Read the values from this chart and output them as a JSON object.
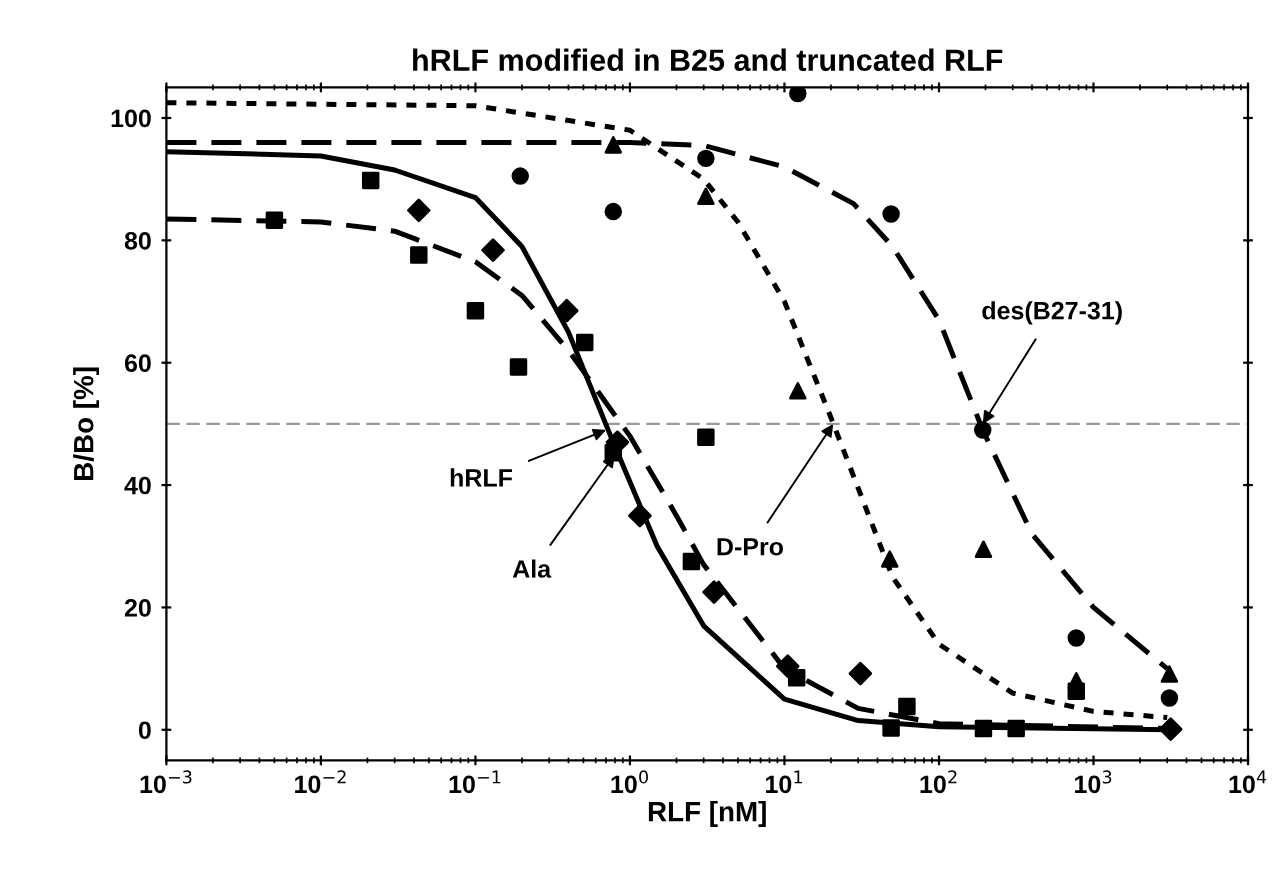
{
  "chart_data": {
    "type": "scatter",
    "title": "hRLF modified in B25 and truncated RLF",
    "xlabel": "RLF [nM]",
    "ylabel": "B/Bo [%]",
    "log": "x",
    "xlim": [
      0.001,
      10000
    ],
    "ylim": [
      -5,
      105
    ],
    "xticks": [
      {
        "value": 0.001,
        "label": "10$^{−3}$"
      },
      {
        "value": 0.01,
        "label": "10$^{−2}$"
      },
      {
        "value": 0.1,
        "label": "10$^{−1}$"
      },
      {
        "value": 1,
        "label": "10$^{0}$"
      },
      {
        "value": 10,
        "label": "10$^{1}$"
      },
      {
        "value": 100,
        "label": "10$^{2}$"
      },
      {
        "value": 1000,
        "label": "10$^{3}$"
      },
      {
        "value": 10000,
        "label": "10$^{4}$"
      }
    ],
    "yticks": [
      0,
      20,
      40,
      60,
      80,
      100
    ],
    "grid": false,
    "legend": false,
    "series": [
      {
        "marker": "square",
        "color": "#000000",
        "x": [
          0.005,
          0.021,
          0.043,
          0.1,
          0.19,
          0.51,
          0.78,
          2.5,
          3.1,
          12,
          49,
          62,
          194,
          316,
          774
        ],
        "values": [
          83.3,
          89.8,
          77.6,
          68.5,
          59.3,
          63.3,
          45.3,
          27.5,
          47.8,
          8.5,
          0.3,
          3.8,
          0.2,
          0.2,
          6.3
        ]
      },
      {
        "marker": "diamond",
        "color": "#000000",
        "x": [
          0.043,
          0.13,
          0.39,
          0.83,
          1.16,
          3.5,
          10.5,
          31,
          3160
        ],
        "values": [
          84.9,
          78.4,
          68.5,
          47,
          35,
          22.5,
          10.4,
          9.2,
          0.1
        ]
      },
      {
        "marker": "triangle",
        "color": "#000000",
        "x": [
          0.78,
          3.1,
          12.2,
          48,
          194,
          774,
          3100
        ],
        "values": [
          95.6,
          87.2,
          55.4,
          27.9,
          29.5,
          8,
          9.1
        ]
      },
      {
        "marker": "circle",
        "color": "#000000",
        "x": [
          0.195,
          0.78,
          3.1,
          12.2,
          49,
          192,
          774,
          3100
        ],
        "values": [
          90.5,
          84.7,
          93.4,
          104,
          84.3,
          49,
          15,
          5.2
        ]
      },
      {
        "type": "line",
        "line_style": "solid",
        "color": "#000000",
        "x": [
          0.001,
          0.01,
          0.03,
          0.1,
          0.2,
          0.4,
          0.77,
          1.5,
          3,
          10,
          30,
          100,
          3000
        ],
        "values": [
          94.5,
          93.8,
          91.5,
          87,
          79,
          65,
          47.3,
          30,
          17,
          5,
          1.5,
          0.5,
          0
        ]
      },
      {
        "type": "line",
        "line_style": "dashed",
        "color": "#000000",
        "x": [
          0.001,
          0.01,
          0.03,
          0.1,
          0.2,
          0.4,
          1,
          2,
          3,
          10,
          30,
          100,
          3000
        ],
        "values": [
          83.5,
          83,
          81.5,
          76.5,
          71,
          62,
          48,
          35,
          27,
          10,
          3.5,
          1,
          0.2
        ]
      },
      {
        "type": "line",
        "line_style": "dotted",
        "color": "#000000",
        "x": [
          0.001,
          0.1,
          1,
          3,
          5,
          10,
          20,
          50,
          100,
          300,
          1000,
          3000
        ],
        "values": [
          102.5,
          102,
          98,
          90,
          83,
          70,
          51,
          25,
          14,
          6,
          3,
          2
        ]
      },
      {
        "type": "line",
        "line_style": "dashed",
        "color": "#000000",
        "x": [
          0.001,
          1,
          3,
          10,
          28,
          50,
          100,
          192,
          400,
          1000,
          3000
        ],
        "values": [
          96,
          96,
          95.5,
          92,
          86,
          79,
          67,
          49,
          32,
          20,
          10
        ]
      }
    ],
    "ref_lines": [
      {
        "axis": "y",
        "value": 50,
        "color": "#999999",
        "line_style": "dashed"
      }
    ],
    "annotations": [
      {
        "text": "hRLF",
        "x": 0.7,
        "y": 49
      },
      {
        "text": "Ala",
        "x": 0.8,
        "y": 45
      },
      {
        "text": "D-Pro",
        "x": 20.7,
        "y": 50
      },
      {
        "text": "des(B27-31)",
        "x": 192,
        "y": 50
      }
    ]
  }
}
